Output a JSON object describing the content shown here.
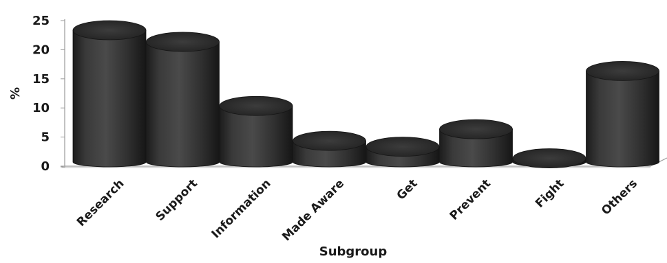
{
  "chart_data": {
    "type": "bar",
    "style": "3d-cylinder",
    "title": "",
    "xlabel": "Subgroup",
    "ylabel": "%",
    "categories": [
      "Research",
      "Support",
      "Information",
      "Made Aware",
      "Get",
      "Prevent",
      "Fight",
      "Others"
    ],
    "values": [
      25,
      23,
      12,
      6,
      5,
      8,
      3,
      18
    ],
    "ylim": [
      0,
      25
    ],
    "yticks": [
      0,
      5,
      10,
      15,
      20,
      25
    ],
    "grid": false,
    "legend": "none",
    "bar_color": "#333333"
  }
}
